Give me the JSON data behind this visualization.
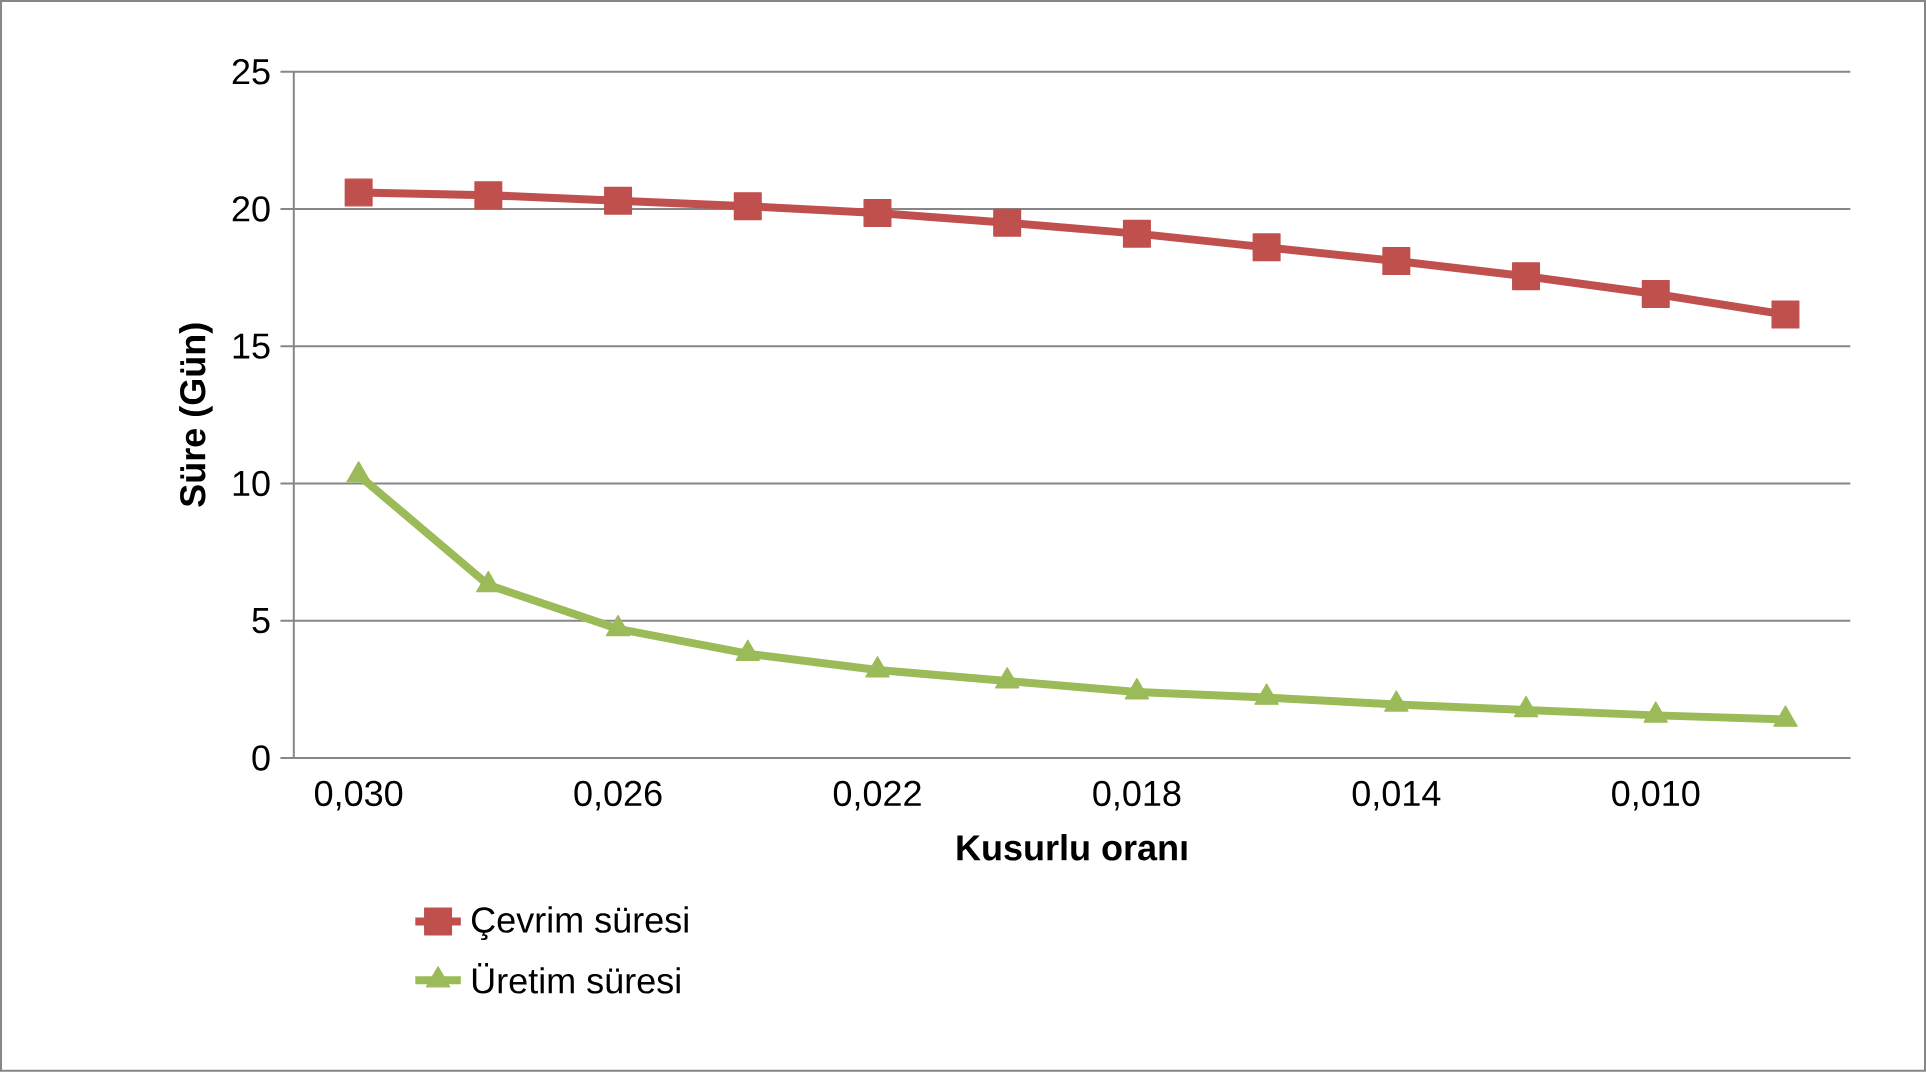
{
  "chart_data": {
    "type": "line",
    "xlabel": "Kusurlu oranı",
    "ylabel": "Süre (Gün)",
    "categories": [
      "0,030",
      null,
      "0,026",
      null,
      "0,022",
      null,
      "0,018",
      null,
      "0,014",
      null,
      "0,010",
      null
    ],
    "series": [
      {
        "name": "Çevrim süresi",
        "color": "#c0504d",
        "marker": "square",
        "values": [
          20.6,
          20.5,
          20.3,
          20.1,
          19.85,
          19.5,
          19.1,
          18.6,
          18.1,
          17.55,
          16.9,
          16.15
        ]
      },
      {
        "name": "Üretim süresi",
        "color": "#9bbb59",
        "marker": "triangle",
        "values": [
          10.3,
          6.3,
          4.7,
          3.8,
          3.2,
          2.8,
          2.4,
          2.2,
          1.95,
          1.75,
          1.55,
          1.4
        ]
      }
    ],
    "ylim": [
      0,
      25
    ],
    "yticks": [
      0,
      5,
      10,
      15,
      20,
      25
    ],
    "grid": "y",
    "legend": "bottom left",
    "line_style": "solid"
  }
}
